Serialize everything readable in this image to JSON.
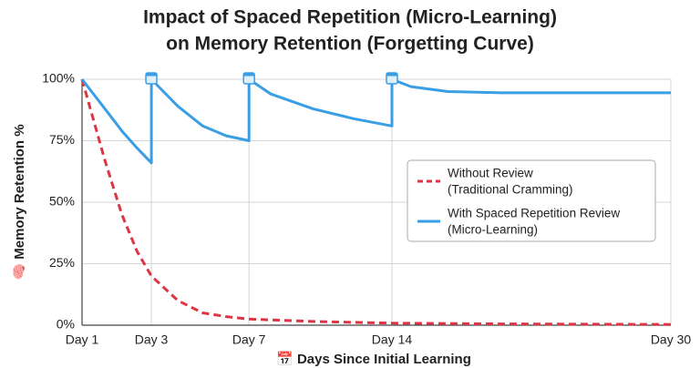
{
  "chart_data": {
    "type": "line",
    "title": [
      "Impact of Spaced Repetition (Micro-Learning)",
      "on Memory Retention (Forgetting Curve)"
    ],
    "y_label": "🧠 Memory Retention %",
    "x_label": "📅 Days Since Initial Learning",
    "xlim": [
      1,
      30
    ],
    "ylim": [
      0,
      100
    ],
    "xticks": [
      {
        "value": 1,
        "label": "Day 1"
      },
      {
        "value": 3,
        "label": "Day 3"
      },
      {
        "value": 7,
        "label": "Day 7"
      },
      {
        "value": 14,
        "label": "Day 14"
      },
      {
        "value": 30,
        "label": "Day 30"
      }
    ],
    "yticks": [
      {
        "value": 0,
        "label": "0%"
      },
      {
        "value": 25,
        "label": "25%"
      },
      {
        "value": 50,
        "label": "50%"
      },
      {
        "value": 75,
        "label": "75%"
      },
      {
        "value": 100,
        "label": "100%"
      }
    ],
    "review_days": [
      3,
      7,
      14
    ],
    "grid": true,
    "legend": "right",
    "series": [
      {
        "name": [
          "Without Review",
          "(Traditional Cramming)"
        ],
        "color": "#dc3545",
        "dashed": true,
        "x": [
          1,
          1.5,
          2,
          2.5,
          3,
          4,
          5,
          6,
          7,
          10,
          14,
          20,
          30
        ],
        "values": [
          100,
          67,
          45,
          30,
          20,
          10,
          5,
          3.5,
          2.5,
          1.5,
          0.8,
          0.5,
          0.3
        ]
      },
      {
        "name": [
          "With Spaced Repetition Review",
          "(Micro-Learning)"
        ],
        "color": "#3a9ee4",
        "dashed": false,
        "x": [
          1,
          1.5,
          2,
          2.5,
          3,
          3,
          4,
          5,
          6,
          7,
          7,
          8,
          10,
          12,
          14,
          14,
          15,
          17,
          20,
          30
        ],
        "values": [
          100,
          88,
          79,
          72,
          66,
          100,
          89,
          81,
          77,
          75,
          100,
          94,
          88,
          84,
          81,
          100,
          97,
          95,
          94.5,
          94.5
        ]
      }
    ]
  }
}
